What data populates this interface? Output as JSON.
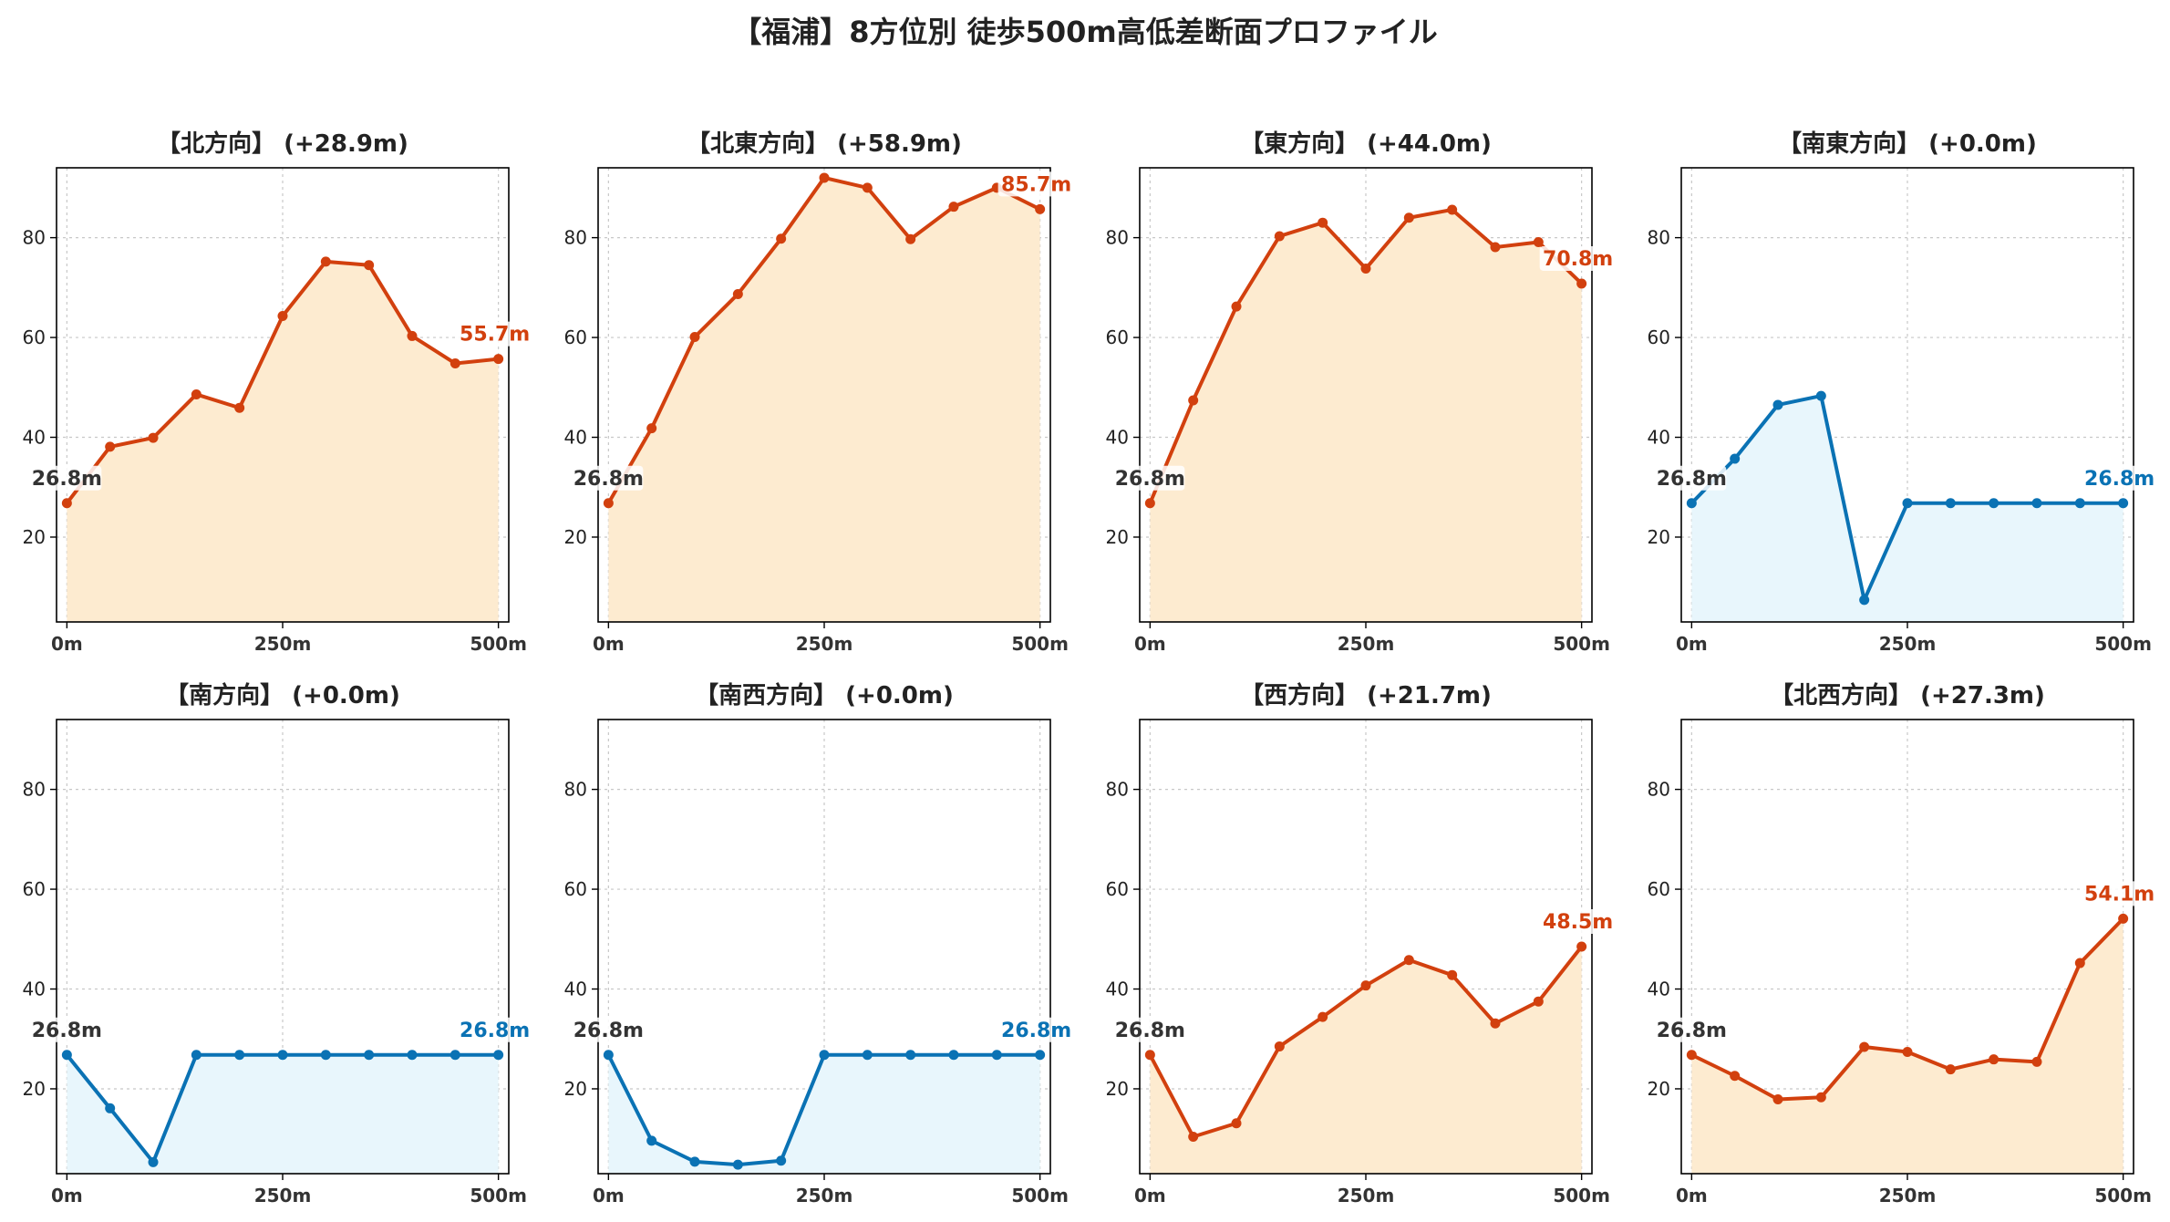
{
  "title": "【福浦】8方位別 徒歩500m高低差断面プロファイル",
  "colors": {
    "up_line": "#d2400e",
    "up_fill": "#fdebd0",
    "flat_line": "#0a72b4",
    "flat_fill": "#e8f6fc",
    "start_label": "#333333",
    "grid": "#c8c8c8"
  },
  "chart_data": [
    {
      "type": "line",
      "title": "【北方向】 (+28.9m)",
      "trend": "up",
      "x": [
        0,
        50,
        100,
        150,
        200,
        250,
        300,
        350,
        400,
        450,
        500
      ],
      "y": [
        26.8,
        38.1,
        39.9,
        48.6,
        45.9,
        64.3,
        75.2,
        74.5,
        60.3,
        54.8,
        55.7
      ],
      "start_label": "26.8m",
      "end_label": "55.7m",
      "xticks": [
        "0m",
        "250m",
        "500m"
      ],
      "yticks": [
        "20",
        "40",
        "60",
        "80"
      ],
      "xlim": [
        -12,
        512
      ],
      "ylim": [
        3,
        94
      ],
      "grid": true
    },
    {
      "type": "line",
      "title": "【北東方向】 (+58.9m)",
      "trend": "up",
      "x": [
        0,
        50,
        100,
        150,
        200,
        250,
        300,
        350,
        400,
        450,
        500
      ],
      "y": [
        26.8,
        41.8,
        60.1,
        68.7,
        79.8,
        92.0,
        90.0,
        79.7,
        86.2,
        90.0,
        85.7
      ],
      "start_label": "26.8m",
      "end_label": "85.7m",
      "xticks": [
        "0m",
        "250m",
        "500m"
      ],
      "yticks": [
        "20",
        "40",
        "60",
        "80"
      ],
      "xlim": [
        -12,
        512
      ],
      "ylim": [
        3,
        94
      ],
      "grid": true
    },
    {
      "type": "line",
      "title": "【東方向】 (+44.0m)",
      "trend": "up",
      "x": [
        0,
        50,
        100,
        150,
        200,
        250,
        300,
        350,
        400,
        450,
        500
      ],
      "y": [
        26.8,
        47.4,
        66.2,
        80.3,
        83.0,
        73.8,
        84.0,
        85.6,
        78.1,
        79.1,
        70.8
      ],
      "start_label": "26.8m",
      "end_label": "70.8m",
      "xticks": [
        "0m",
        "250m",
        "500m"
      ],
      "yticks": [
        "20",
        "40",
        "60",
        "80"
      ],
      "xlim": [
        -12,
        512
      ],
      "ylim": [
        3,
        94
      ],
      "grid": true
    },
    {
      "type": "line",
      "title": "【南東方向】 (+0.0m)",
      "trend": "flat",
      "x": [
        0,
        50,
        100,
        150,
        200,
        250,
        300,
        350,
        400,
        450,
        500
      ],
      "y": [
        26.8,
        35.7,
        46.5,
        48.3,
        7.4,
        26.8,
        26.8,
        26.8,
        26.8,
        26.8,
        26.8
      ],
      "start_label": "26.8m",
      "end_label": "26.8m",
      "xticks": [
        "0m",
        "250m",
        "500m"
      ],
      "yticks": [
        "20",
        "40",
        "60",
        "80"
      ],
      "xlim": [
        -12,
        512
      ],
      "ylim": [
        3,
        94
      ],
      "grid": true
    },
    {
      "type": "line",
      "title": "【南方向】 (+0.0m)",
      "trend": "flat",
      "x": [
        0,
        50,
        100,
        150,
        200,
        250,
        300,
        350,
        400,
        450,
        500
      ],
      "y": [
        26.8,
        16.1,
        5.3,
        26.8,
        26.8,
        26.8,
        26.8,
        26.8,
        26.8,
        26.8,
        26.8
      ],
      "start_label": "26.8m",
      "end_label": "26.8m",
      "xticks": [
        "0m",
        "250m",
        "500m"
      ],
      "yticks": [
        "20",
        "40",
        "60",
        "80"
      ],
      "xlim": [
        -12,
        512
      ],
      "ylim": [
        3,
        94
      ],
      "grid": true
    },
    {
      "type": "line",
      "title": "【南西方向】 (+0.0m)",
      "trend": "flat",
      "x": [
        0,
        50,
        100,
        150,
        200,
        250,
        300,
        350,
        400,
        450,
        500
      ],
      "y": [
        26.8,
        9.6,
        5.4,
        4.8,
        5.6,
        26.8,
        26.8,
        26.8,
        26.8,
        26.8,
        26.8
      ],
      "start_label": "26.8m",
      "end_label": "26.8m",
      "xticks": [
        "0m",
        "250m",
        "500m"
      ],
      "yticks": [
        "20",
        "40",
        "60",
        "80"
      ],
      "xlim": [
        -12,
        512
      ],
      "ylim": [
        3,
        94
      ],
      "grid": true
    },
    {
      "type": "line",
      "title": "【西方向】 (+21.7m)",
      "trend": "up",
      "x": [
        0,
        50,
        100,
        150,
        200,
        250,
        300,
        350,
        400,
        450,
        500
      ],
      "y": [
        26.8,
        10.4,
        13.1,
        28.5,
        34.4,
        40.7,
        45.8,
        42.8,
        33.1,
        37.5,
        48.5
      ],
      "start_label": "26.8m",
      "end_label": "48.5m",
      "xticks": [
        "0m",
        "250m",
        "500m"
      ],
      "yticks": [
        "20",
        "40",
        "60",
        "80"
      ],
      "xlim": [
        -12,
        512
      ],
      "ylim": [
        3,
        94
      ],
      "grid": true
    },
    {
      "type": "line",
      "title": "【北西方向】 (+27.3m)",
      "trend": "up",
      "x": [
        0,
        50,
        100,
        150,
        200,
        250,
        300,
        350,
        400,
        450,
        500
      ],
      "y": [
        26.8,
        22.6,
        17.9,
        18.3,
        28.4,
        27.4,
        23.9,
        25.9,
        25.4,
        45.2,
        54.1
      ],
      "start_label": "26.8m",
      "end_label": "54.1m",
      "xticks": [
        "0m",
        "250m",
        "500m"
      ],
      "yticks": [
        "20",
        "40",
        "60",
        "80"
      ],
      "xlim": [
        -12,
        512
      ],
      "ylim": [
        3,
        94
      ],
      "grid": true
    }
  ]
}
